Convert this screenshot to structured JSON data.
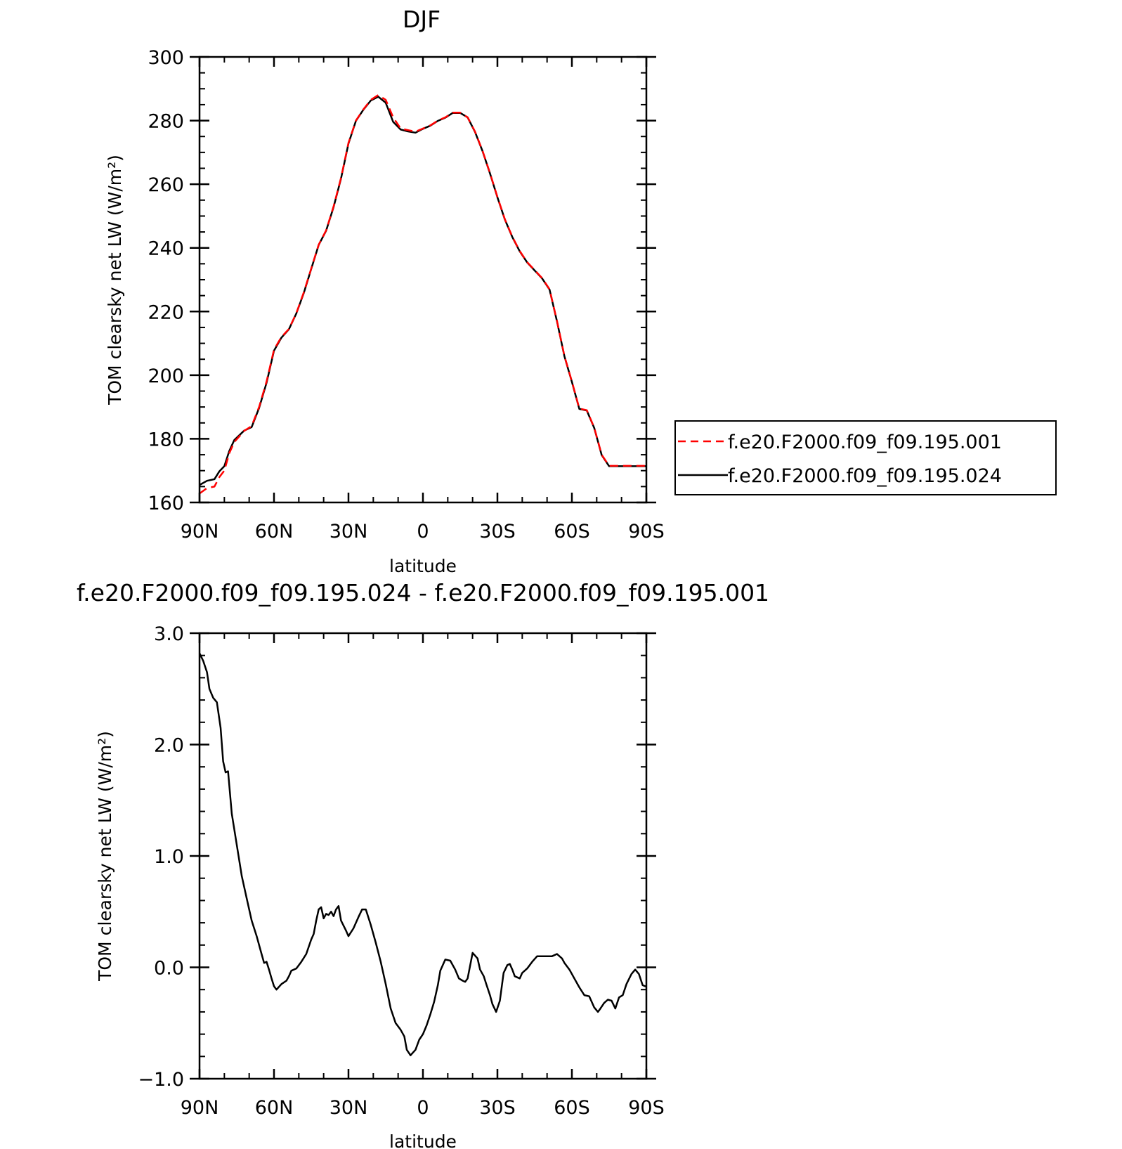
{
  "chart_data": [
    {
      "type": "line",
      "title": "DJF",
      "xlabel": "latitude",
      "ylabel": "TOM clearsky net LW (W/m²)",
      "xlim": [
        90,
        -90
      ],
      "ylim": [
        160,
        300
      ],
      "x_tick_values": [
        90,
        60,
        30,
        0,
        -30,
        -60,
        -90
      ],
      "x_tick_labels": [
        "90N",
        "60N",
        "30N",
        "0",
        "30S",
        "60S",
        "90S"
      ],
      "y_tick_values": [
        160,
        180,
        200,
        220,
        240,
        260,
        280,
        300
      ],
      "y_tick_labels": [
        "160",
        "180",
        "200",
        "220",
        "240",
        "260",
        "280",
        "300"
      ],
      "legend_position": "right",
      "series": [
        {
          "name": "f.e20.F2000.f09_f09.195.001",
          "color": "#ff0000",
          "dash": "dashed",
          "x": [
            90,
            87,
            84,
            82,
            80,
            78,
            76,
            72,
            69,
            66,
            63,
            60,
            57,
            54,
            51,
            48,
            45,
            42,
            39,
            36,
            33,
            30,
            27,
            24,
            21,
            18,
            15,
            12,
            9,
            6,
            3,
            0,
            -3,
            -6,
            -9,
            -12,
            -15,
            -18,
            -21,
            -24,
            -27,
            -30,
            -33,
            -36,
            -39,
            -42,
            -45,
            -48,
            -51,
            -54,
            -57,
            -60,
            -63,
            -66,
            -69,
            -72,
            -75,
            -78,
            -81,
            -84,
            -87,
            -90
          ],
          "y": [
            162.8,
            164.5,
            165,
            168,
            170,
            175.5,
            179,
            182.5,
            184,
            190,
            198,
            208,
            212,
            214.5,
            219.5,
            226,
            233.5,
            241,
            245.5,
            253,
            262,
            273,
            280,
            283.5,
            286.5,
            288,
            286.5,
            281,
            277.5,
            277,
            276.5,
            277.5,
            278.5,
            280,
            281,
            282.5,
            282.5,
            281,
            276.5,
            270.5,
            263.5,
            256,
            249,
            243.5,
            239,
            235.5,
            233,
            230.5,
            227,
            217,
            206,
            198,
            189.5,
            189,
            183.5,
            175,
            171.5,
            171.5,
            171.5,
            171.5,
            171.5,
            171.5
          ]
        },
        {
          "name": "f.e20.F2000.f09_f09.195.024",
          "color": "#000000",
          "dash": "solid",
          "x": [
            90,
            87,
            84,
            82,
            80,
            78,
            76,
            72,
            69,
            66,
            63,
            60,
            57,
            54,
            51,
            48,
            45,
            42,
            39,
            36,
            33,
            30,
            27,
            24,
            21,
            18,
            15,
            12,
            9,
            6,
            3,
            0,
            -3,
            -6,
            -9,
            -12,
            -15,
            -18,
            -21,
            -24,
            -27,
            -30,
            -33,
            -36,
            -39,
            -42,
            -45,
            -48,
            -51,
            -54,
            -57,
            -60,
            -63,
            -66,
            -69,
            -72,
            -75,
            -78,
            -81,
            -84,
            -87,
            -90
          ],
          "y": [
            165.5,
            166.8,
            167.3,
            169.8,
            171.4,
            176.2,
            179.6,
            182.6,
            183.7,
            189.7,
            197.6,
            207.7,
            211.8,
            214.4,
            219.4,
            225.8,
            233.4,
            240.9,
            245.4,
            252.8,
            261.8,
            272.8,
            279.9,
            283.4,
            286.3,
            287.5,
            285.6,
            279.6,
            277.2,
            276.6,
            276.2,
            277.4,
            278.4,
            279.9,
            280.9,
            282.4,
            282.4,
            281,
            276.4,
            270.4,
            263.4,
            255.9,
            248.9,
            243.4,
            238.9,
            235.4,
            232.9,
            230.4,
            226.9,
            216.9,
            205.9,
            197.9,
            189.4,
            188.9,
            183.4,
            174.9,
            171.4,
            171.4,
            171.4,
            171.4,
            171.4,
            171.4
          ]
        }
      ]
    },
    {
      "type": "line",
      "title": "f.e20.F2000.f09_f09.195.024 - f.e20.F2000.f09_f09.195.001",
      "xlabel": "latitude",
      "ylabel": "TOM clearsky net LW (W/m²)",
      "xlim": [
        90,
        -90
      ],
      "ylim": [
        -1.0,
        3.0
      ],
      "x_tick_values": [
        90,
        60,
        30,
        0,
        -30,
        -60,
        -90
      ],
      "x_tick_labels": [
        "90N",
        "60N",
        "30N",
        "0",
        "30S",
        "60S",
        "90S"
      ],
      "y_tick_values": [
        -1.0,
        0.0,
        1.0,
        2.0,
        3.0
      ],
      "y_tick_labels": [
        "−1.0",
        "0.0",
        "1.0",
        "2.0",
        "3.0"
      ],
      "series": [
        {
          "color": "#000000",
          "dash": "solid",
          "x": [
            90,
            88.5,
            87,
            86,
            84.5,
            83,
            81.5,
            80.5,
            79.5,
            78.5,
            77,
            75,
            73,
            71,
            69,
            67,
            65,
            64,
            63,
            62,
            61,
            60,
            59,
            57,
            55,
            54,
            53,
            51,
            49,
            47,
            45,
            44,
            43,
            42,
            41,
            40,
            39,
            38,
            37,
            36,
            35,
            34,
            33,
            31,
            30,
            28,
            26,
            24.5,
            23,
            21,
            19,
            17,
            15,
            13,
            11,
            9,
            7.5,
            6.5,
            5,
            3,
            1.5,
            0,
            -1.5,
            -3,
            -4.5,
            -6,
            -7,
            -9,
            -11,
            -13,
            -14.5,
            -16,
            -17,
            -18,
            -20,
            -22,
            -23,
            -24.5,
            -25.5,
            -27,
            -28,
            -29.5,
            -31,
            -32.5,
            -34,
            -35,
            -36,
            -37,
            -39,
            -40,
            -42,
            -44,
            -46,
            -48,
            -50,
            -52,
            -54,
            -56,
            -57,
            -59,
            -61,
            -63,
            -65,
            -67,
            -69,
            -70.5,
            -71.5,
            -73,
            -74.5,
            -76,
            -77.5,
            -79,
            -80.5,
            -82,
            -84,
            -85.5,
            -87,
            -88.5,
            -89.5,
            -90
          ],
          "y": [
            2.82,
            2.75,
            2.65,
            2.5,
            2.42,
            2.38,
            2.15,
            1.85,
            1.75,
            1.76,
            1.38,
            1.1,
            0.82,
            0.62,
            0.42,
            0.28,
            0.12,
            0.04,
            0.05,
            -0.02,
            -0.1,
            -0.17,
            -0.2,
            -0.15,
            -0.12,
            -0.08,
            -0.03,
            -0.01,
            0.05,
            0.12,
            0.25,
            0.3,
            0.42,
            0.52,
            0.54,
            0.44,
            0.48,
            0.47,
            0.5,
            0.46,
            0.52,
            0.55,
            0.42,
            0.33,
            0.28,
            0.35,
            0.45,
            0.52,
            0.52,
            0.38,
            0.22,
            0.05,
            -0.15,
            -0.37,
            -0.5,
            -0.56,
            -0.62,
            -0.74,
            -0.79,
            -0.74,
            -0.65,
            -0.6,
            -0.52,
            -0.42,
            -0.31,
            -0.16,
            -0.03,
            0.07,
            0.06,
            -0.02,
            -0.1,
            -0.12,
            -0.13,
            -0.1,
            0.13,
            0.08,
            -0.02,
            -0.08,
            -0.15,
            -0.25,
            -0.33,
            -0.4,
            -0.3,
            -0.05,
            0.02,
            0.03,
            -0.02,
            -0.08,
            -0.1,
            -0.05,
            -0.01,
            0.05,
            0.1,
            0.1,
            0.1,
            0.1,
            0.12,
            0.08,
            0.04,
            -0.02,
            -0.1,
            -0.18,
            -0.25,
            -0.26,
            -0.36,
            -0.4,
            -0.37,
            -0.32,
            -0.29,
            -0.3,
            -0.37,
            -0.27,
            -0.25,
            -0.15,
            -0.06,
            -0.02,
            -0.06,
            -0.16,
            -0.17,
            -0.17
          ]
        }
      ]
    }
  ]
}
